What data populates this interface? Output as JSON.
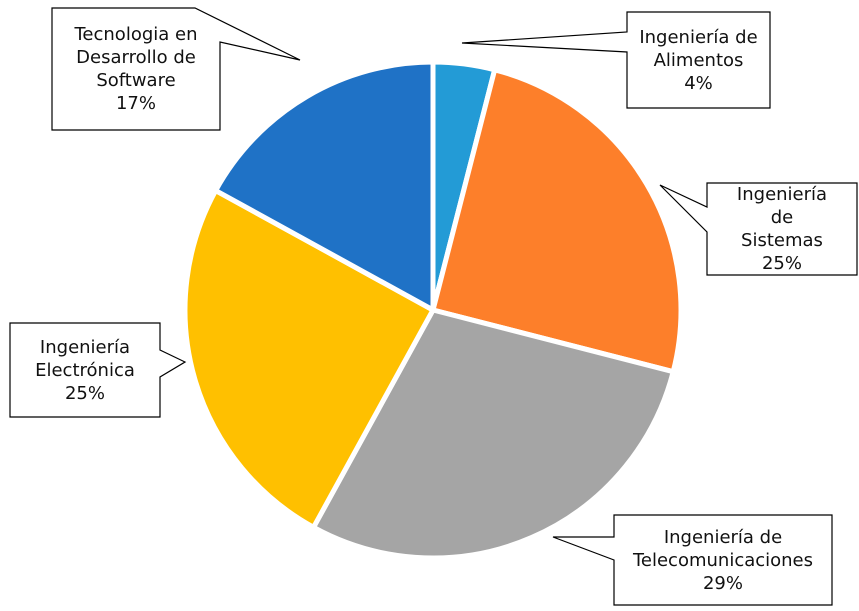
{
  "chart_data": {
    "type": "pie",
    "categories": [
      "Ingeniería de Alimentos",
      "Ingeniería de Sistemas",
      "Ingeniería de Telecomunicaciones",
      "Ingeniería Electrónica",
      "Tecnologia en Desarrollo de Software"
    ],
    "values": [
      4,
      25,
      29,
      25,
      17
    ],
    "value_labels": [
      "4%",
      "25%",
      "29%",
      "25%",
      "17%"
    ],
    "colors": [
      "#239bd6",
      "#fd7f2a",
      "#a5a5a5",
      "#ffc000",
      "#1f72c6"
    ]
  }
}
